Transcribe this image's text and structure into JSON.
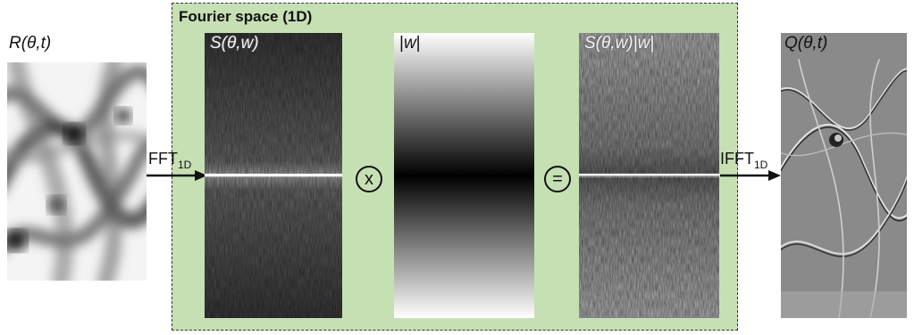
{
  "panel": {
    "title": "Fourier space (1D)"
  },
  "images": {
    "input": {
      "label": "R(θ,t)"
    },
    "spectrum": {
      "label": "S(θ,w)"
    },
    "filter": {
      "label_prefix": "|",
      "label_var": "w",
      "label_suffix": "|"
    },
    "filtered_spectrum": {
      "label": "S(θ,w)|w|"
    },
    "output": {
      "label": "Q(θ,t)"
    }
  },
  "arrows": {
    "forward": {
      "text": "FFT",
      "sub": "1D"
    },
    "inverse": {
      "text": "IFFT",
      "sub": "1D"
    }
  },
  "operators": {
    "multiply": "x",
    "equals": "="
  },
  "colors": {
    "panel_fill": "#c6e0b4",
    "panel_border": "#333333"
  }
}
